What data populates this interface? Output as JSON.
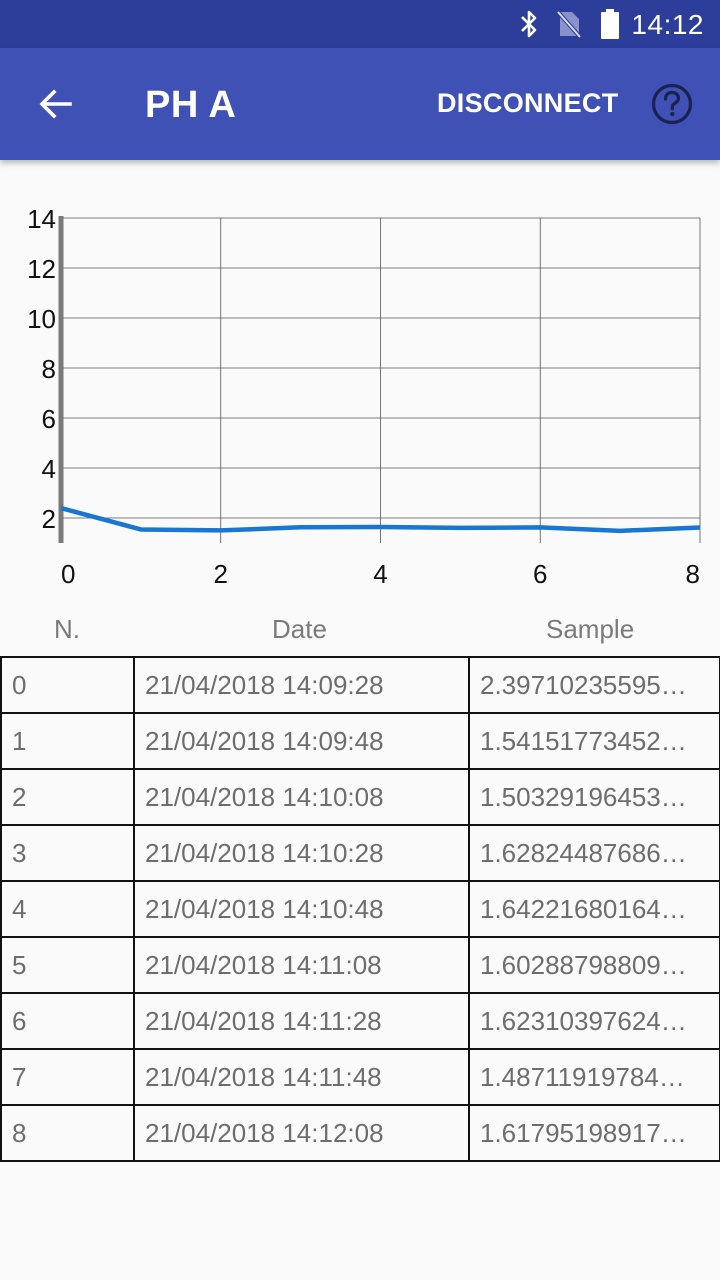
{
  "status_bar": {
    "time": "14:12",
    "icons": [
      "bluetooth-icon",
      "no-sim-icon",
      "battery-icon"
    ]
  },
  "app_bar": {
    "title": "PH A",
    "action_label": "DISCONNECT",
    "icons": [
      "back-arrow-icon",
      "help-icon"
    ]
  },
  "colors": {
    "status_bar": "#2c3e9a",
    "app_bar": "#3f51b5",
    "series": "#1976d2",
    "background": "#fafafa"
  },
  "chart_data": {
    "type": "line",
    "x": [
      0,
      1,
      2,
      3,
      4,
      5,
      6,
      7,
      8
    ],
    "series": [
      {
        "values": [
          2.39710235595,
          1.54151773452,
          1.50329196453,
          1.62824487686,
          1.64221680164,
          1.60288798809,
          1.62310397624,
          1.48711919784,
          1.61795198917
        ]
      }
    ],
    "xlim": [
      0,
      8
    ],
    "ylim": [
      1,
      14
    ],
    "x_ticks": [
      0,
      2,
      4,
      6,
      8
    ],
    "y_ticks": [
      2,
      4,
      6,
      8,
      10,
      12,
      14
    ],
    "grid": true,
    "title": "",
    "xlabel": "",
    "ylabel": ""
  },
  "table": {
    "headers": {
      "n": "N.",
      "date": "Date",
      "sample": "Sample"
    },
    "rows": [
      {
        "n": "0",
        "date": "21/04/2018 14:09:28",
        "sample": "2.39710235595…"
      },
      {
        "n": "1",
        "date": "21/04/2018 14:09:48",
        "sample": "1.54151773452…"
      },
      {
        "n": "2",
        "date": "21/04/2018 14:10:08",
        "sample": "1.50329196453…"
      },
      {
        "n": "3",
        "date": "21/04/2018 14:10:28",
        "sample": "1.62824487686…"
      },
      {
        "n": "4",
        "date": "21/04/2018 14:10:48",
        "sample": "1.64221680164…"
      },
      {
        "n": "5",
        "date": "21/04/2018 14:11:08",
        "sample": "1.60288798809…"
      },
      {
        "n": "6",
        "date": "21/04/2018 14:11:28",
        "sample": "1.62310397624…"
      },
      {
        "n": "7",
        "date": "21/04/2018 14:11:48",
        "sample": "1.48711919784…"
      },
      {
        "n": "8",
        "date": "21/04/2018 14:12:08",
        "sample": "1.61795198917…"
      }
    ]
  }
}
